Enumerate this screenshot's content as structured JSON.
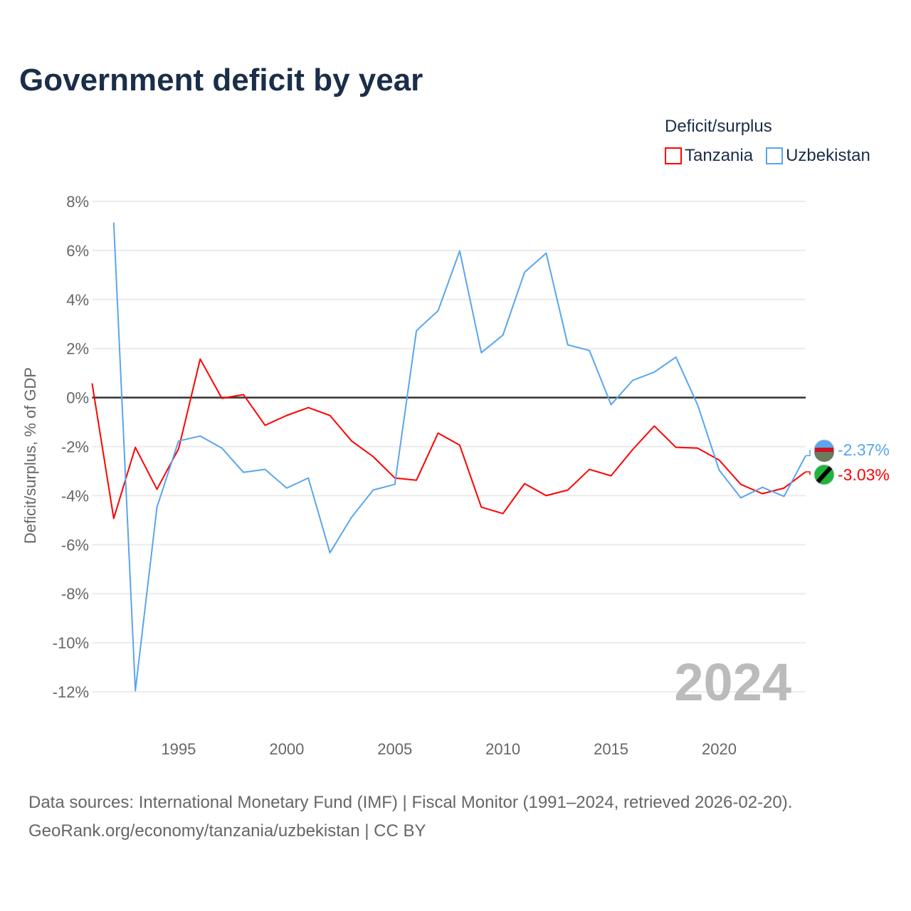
{
  "title": "Government deficit by year",
  "legend": {
    "title": "Deficit/surplus"
  },
  "colors": {
    "Tanzania": "#ff0000",
    "Uzbekistan": "#5aa5eb"
  },
  "year_watermark": "2024",
  "footer": {
    "line1": "Data sources: International Monetary Fund (IMF) | Fiscal Monitor (1991–2024, retrieved 2026-02-20).",
    "line2": "GeoRank.org/economy/tanzania/uzbekistan | CC BY"
  },
  "chart_data": {
    "type": "line",
    "title": "Government deficit by year",
    "xlabel": "",
    "ylabel": "Deficit/surplus, % of GDP",
    "xlim": [
      1991,
      2024
    ],
    "ylim": [
      -12,
      8
    ],
    "xticks": [
      1995,
      2000,
      2005,
      2010,
      2015,
      2020
    ],
    "yticks": [
      8,
      6,
      4,
      2,
      0,
      -2,
      -4,
      -6,
      -8,
      -10,
      -12
    ],
    "ytick_labels": [
      "8%",
      "6%",
      "4%",
      "2%",
      "0%",
      "-2%",
      "-4%",
      "-6%",
      "-8%",
      "-10%",
      "-12%"
    ],
    "grid": true,
    "legend_position": "top-right",
    "series": [
      {
        "name": "Tanzania",
        "end_label": "-3.03%",
        "x": [
          1991,
          1992,
          1993,
          1994,
          1995,
          1996,
          1997,
          1998,
          1999,
          2000,
          2001,
          2002,
          2003,
          2004,
          2005,
          2006,
          2007,
          2008,
          2009,
          2010,
          2011,
          2012,
          2013,
          2014,
          2015,
          2016,
          2017,
          2018,
          2019,
          2020,
          2021,
          2022,
          2023,
          2024
        ],
        "values": [
          0.58,
          -4.93,
          -2.03,
          -3.74,
          -2.09,
          1.57,
          -0.03,
          0.12,
          -1.13,
          -0.73,
          -0.41,
          -0.73,
          -1.77,
          -2.41,
          -3.28,
          -3.37,
          -1.45,
          -1.94,
          -4.47,
          -4.73,
          -3.51,
          -4.0,
          -3.77,
          -2.93,
          -3.19,
          -2.12,
          -1.16,
          -2.03,
          -2.06,
          -2.55,
          -3.54,
          -3.92,
          -3.69,
          -3.03
        ]
      },
      {
        "name": "Uzbekistan",
        "end_label": "-2.37%",
        "x": [
          1992,
          1993,
          1994,
          1995,
          1996,
          1997,
          1998,
          1999,
          2000,
          2001,
          2002,
          2003,
          2004,
          2005,
          2006,
          2007,
          2008,
          2009,
          2010,
          2011,
          2012,
          2013,
          2014,
          2015,
          2016,
          2017,
          2018,
          2019,
          2020,
          2021,
          2022,
          2023,
          2024
        ],
        "values": [
          7.14,
          -11.96,
          -4.47,
          -1.77,
          -1.57,
          -2.06,
          -3.05,
          -2.93,
          -3.69,
          -3.28,
          -6.33,
          -4.88,
          -3.77,
          -3.54,
          2.73,
          3.54,
          5.98,
          1.83,
          2.55,
          5.11,
          5.89,
          2.15,
          1.92,
          -0.29,
          0.7,
          1.04,
          1.65,
          -0.29,
          -2.96,
          -4.09,
          -3.66,
          -4.03,
          -2.37
        ]
      }
    ]
  }
}
